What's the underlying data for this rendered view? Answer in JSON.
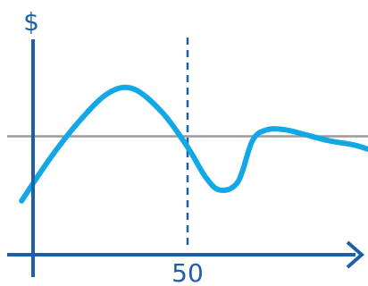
{
  "colors": {
    "axis": "#1f5fa9",
    "curve": "#12a7e6",
    "reference_line": "#9a9a9a",
    "marker_line": "#1f5fa9"
  },
  "chart_data": {
    "type": "line",
    "ylabel": "$",
    "x_tick_labels": [
      "50"
    ],
    "marker_x": 50,
    "xlim": [
      0,
      100
    ],
    "ylim": [
      0,
      100
    ],
    "reference_y": 55,
    "series": [
      {
        "x": [
          4,
          12,
          20,
          28,
          35,
          43,
          50,
          55,
          59,
          64,
          68,
          72,
          77,
          82,
          89,
          96,
          100
        ],
        "y": [
          25,
          45,
          62,
          75,
          77,
          66,
          50,
          36,
          30,
          34,
          53,
          58,
          58,
          56,
          53,
          51,
          49
        ]
      }
    ]
  }
}
